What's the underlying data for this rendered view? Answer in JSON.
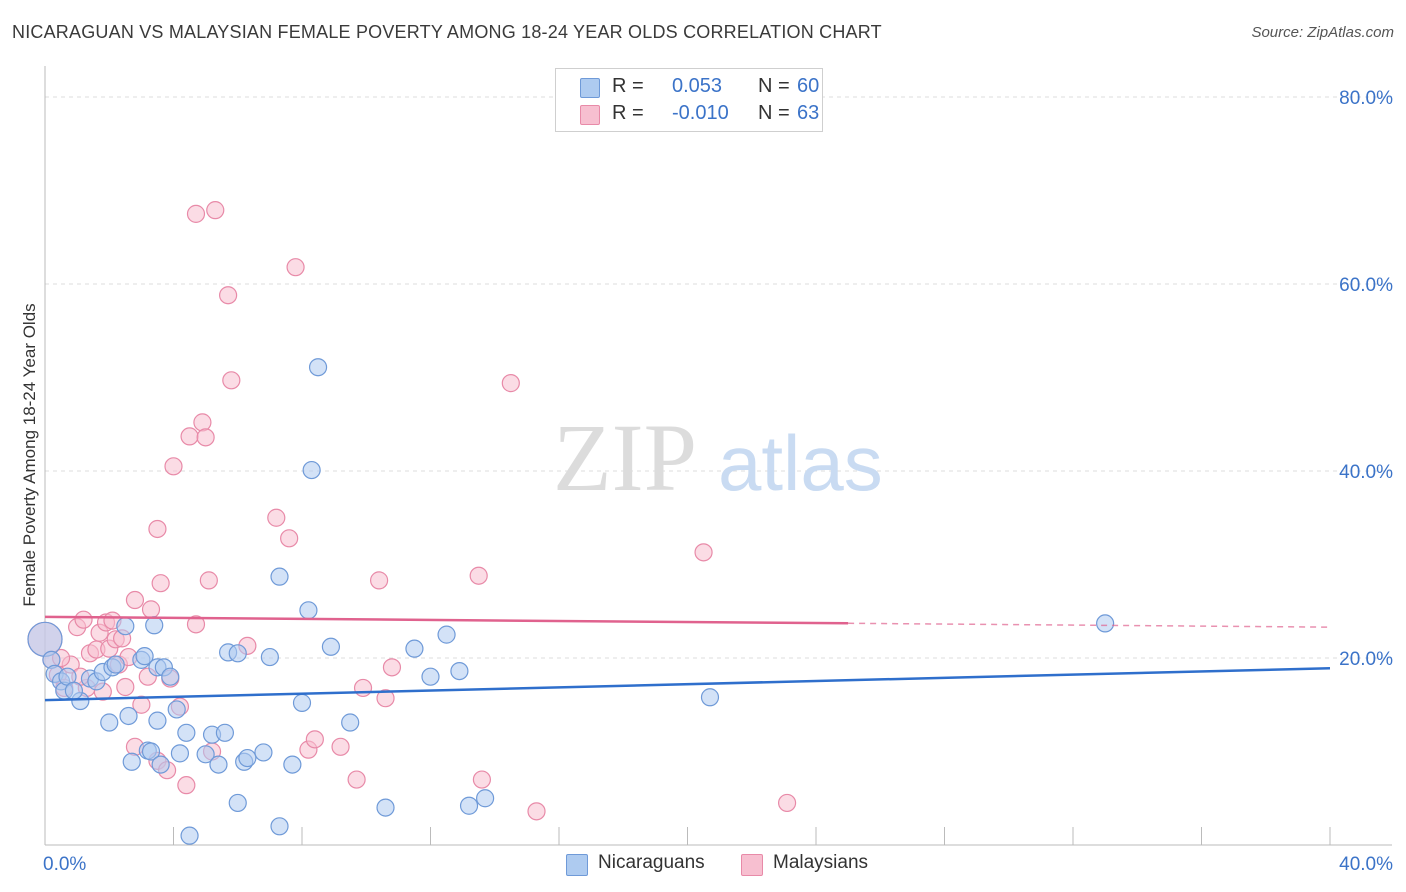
{
  "header": {
    "title": "NICARAGUAN VS MALAYSIAN FEMALE POVERTY AMONG 18-24 YEAR OLDS CORRELATION CHART",
    "source": "Source: ZipAtlas.com"
  },
  "legend": {
    "rows": [
      {
        "r_label": "R =",
        "r_value": "0.053",
        "n_label": "N =",
        "n_value": "60",
        "color": "#aecbf0"
      },
      {
        "r_label": "R =",
        "r_value": "-0.010",
        "n_label": "N =",
        "n_value": "63",
        "color": "#f7bfd0"
      }
    ],
    "bottom": [
      {
        "label": "Nicaraguans",
        "color": "#aecbf0"
      },
      {
        "label": "Malaysians",
        "color": "#f7bfd0"
      }
    ]
  },
  "watermark": {
    "zip": "ZIP",
    "atlas": "atlas"
  },
  "colors": {
    "blue_fill": "#aecbf0",
    "blue_stroke": "#6f9ad8",
    "blue_line": "#2f6fcc",
    "pink_fill": "#f7bfd0",
    "pink_stroke": "#e88aa8",
    "pink_line": "#e0628e",
    "grid": "#dddddd",
    "tick_label": "#3b73c8"
  },
  "chart_data": {
    "type": "scatter",
    "title": "NICARAGUAN VS MALAYSIAN FEMALE POVERTY AMONG 18-24 YEAR OLDS CORRELATION CHART",
    "xlabel": "",
    "ylabel": "Female Poverty Among 18-24 Year Olds",
    "xlim": [
      0,
      40
    ],
    "ylim": [
      0,
      80
    ],
    "x_tick_labels": [
      "0.0%",
      "40.0%"
    ],
    "y_ticks": [
      20,
      40,
      60,
      80
    ],
    "y_tick_labels": [
      "20.0%",
      "40.0%",
      "60.0%",
      "80.0%"
    ],
    "grid": true,
    "legend_position": "top-center",
    "series": [
      {
        "name": "Nicaraguans",
        "trend": {
          "x": [
            0,
            40
          ],
          "y": [
            15.5,
            18.9
          ],
          "dashed_from": null
        },
        "points": [
          [
            0.0,
            22.0
          ],
          [
            0.2,
            19.8
          ],
          [
            0.3,
            18.3
          ],
          [
            0.5,
            17.5
          ],
          [
            0.6,
            16.5
          ],
          [
            0.7,
            18.0
          ],
          [
            1.1,
            15.4
          ],
          [
            1.4,
            17.8
          ],
          [
            1.6,
            17.5
          ],
          [
            1.8,
            18.5
          ],
          [
            2.0,
            13.1
          ],
          [
            2.1,
            19.0
          ],
          [
            2.2,
            19.3
          ],
          [
            2.5,
            23.4
          ],
          [
            2.6,
            13.8
          ],
          [
            2.7,
            8.9
          ],
          [
            3.0,
            19.8
          ],
          [
            3.1,
            20.2
          ],
          [
            3.2,
            10.1
          ],
          [
            3.3,
            10.0
          ],
          [
            3.4,
            23.5
          ],
          [
            3.5,
            13.3
          ],
          [
            3.6,
            8.6
          ],
          [
            3.5,
            19.0
          ],
          [
            3.7,
            19.0
          ],
          [
            3.9,
            18.0
          ],
          [
            4.1,
            14.5
          ],
          [
            4.2,
            9.8
          ],
          [
            4.4,
            12.0
          ],
          [
            4.5,
            1.0
          ],
          [
            5.0,
            9.7
          ],
          [
            5.2,
            11.8
          ],
          [
            5.4,
            8.6
          ],
          [
            5.6,
            12.0
          ],
          [
            5.7,
            20.6
          ],
          [
            6.0,
            20.5
          ],
          [
            6.2,
            8.9
          ],
          [
            6.3,
            9.3
          ],
          [
            6.8,
            9.9
          ],
          [
            7.0,
            20.1
          ],
          [
            7.3,
            28.7
          ],
          [
            7.7,
            8.6
          ],
          [
            8.0,
            15.2
          ],
          [
            8.5,
            51.1
          ],
          [
            8.2,
            25.1
          ],
          [
            8.3,
            40.1
          ],
          [
            8.9,
            21.2
          ],
          [
            9.5,
            13.1
          ],
          [
            10.6,
            4.0
          ],
          [
            11.5,
            21.0
          ],
          [
            12.0,
            18.0
          ],
          [
            12.5,
            22.5
          ],
          [
            12.9,
            18.6
          ],
          [
            13.2,
            4.2
          ],
          [
            13.7,
            5.0
          ],
          [
            7.3,
            2.0
          ],
          [
            20.7,
            15.8
          ],
          [
            33.0,
            23.7
          ],
          [
            6.0,
            4.5
          ],
          [
            0.9,
            16.5
          ]
        ]
      },
      {
        "name": "Malaysians",
        "trend": {
          "x": [
            0,
            40
          ],
          "y": [
            24.4,
            23.3
          ],
          "dashed_from": 25
        },
        "points": [
          [
            0.0,
            22.0
          ],
          [
            0.2,
            19.8
          ],
          [
            0.4,
            18.2
          ],
          [
            0.6,
            16.8
          ],
          [
            0.8,
            19.3
          ],
          [
            1.0,
            23.3
          ],
          [
            1.2,
            24.1
          ],
          [
            1.3,
            16.8
          ],
          [
            1.4,
            20.5
          ],
          [
            1.6,
            20.9
          ],
          [
            1.7,
            22.7
          ],
          [
            1.9,
            23.8
          ],
          [
            2.0,
            21.0
          ],
          [
            2.1,
            24.0
          ],
          [
            2.2,
            22.0
          ],
          [
            2.3,
            19.3
          ],
          [
            2.5,
            16.9
          ],
          [
            2.6,
            20.1
          ],
          [
            2.8,
            10.5
          ],
          [
            2.8,
            26.2
          ],
          [
            3.0,
            15.0
          ],
          [
            3.2,
            18.0
          ],
          [
            3.3,
            25.2
          ],
          [
            3.5,
            9.0
          ],
          [
            3.5,
            33.8
          ],
          [
            3.6,
            28.0
          ],
          [
            3.8,
            8.0
          ],
          [
            3.9,
            17.8
          ],
          [
            4.0,
            40.5
          ],
          [
            4.2,
            14.8
          ],
          [
            4.4,
            6.4
          ],
          [
            4.5,
            43.7
          ],
          [
            4.7,
            23.6
          ],
          [
            4.7,
            67.5
          ],
          [
            4.9,
            45.2
          ],
          [
            5.0,
            43.6
          ],
          [
            5.1,
            28.3
          ],
          [
            5.2,
            10.0
          ],
          [
            5.3,
            67.9
          ],
          [
            5.7,
            58.8
          ],
          [
            5.8,
            49.7
          ],
          [
            6.3,
            21.3
          ],
          [
            7.2,
            35.0
          ],
          [
            7.6,
            32.8
          ],
          [
            7.8,
            61.8
          ],
          [
            8.2,
            10.2
          ],
          [
            8.4,
            11.3
          ],
          [
            9.2,
            10.5
          ],
          [
            9.7,
            7.0
          ],
          [
            9.9,
            16.8
          ],
          [
            10.4,
            28.3
          ],
          [
            10.6,
            15.7
          ],
          [
            10.8,
            19.0
          ],
          [
            13.5,
            28.8
          ],
          [
            13.6,
            7.0
          ],
          [
            14.5,
            49.4
          ],
          [
            15.3,
            3.6
          ],
          [
            20.5,
            31.3
          ],
          [
            23.1,
            4.5
          ],
          [
            0.5,
            20.0
          ],
          [
            1.1,
            18.0
          ],
          [
            2.4,
            22.1
          ],
          [
            1.8,
            16.4
          ]
        ]
      }
    ]
  }
}
